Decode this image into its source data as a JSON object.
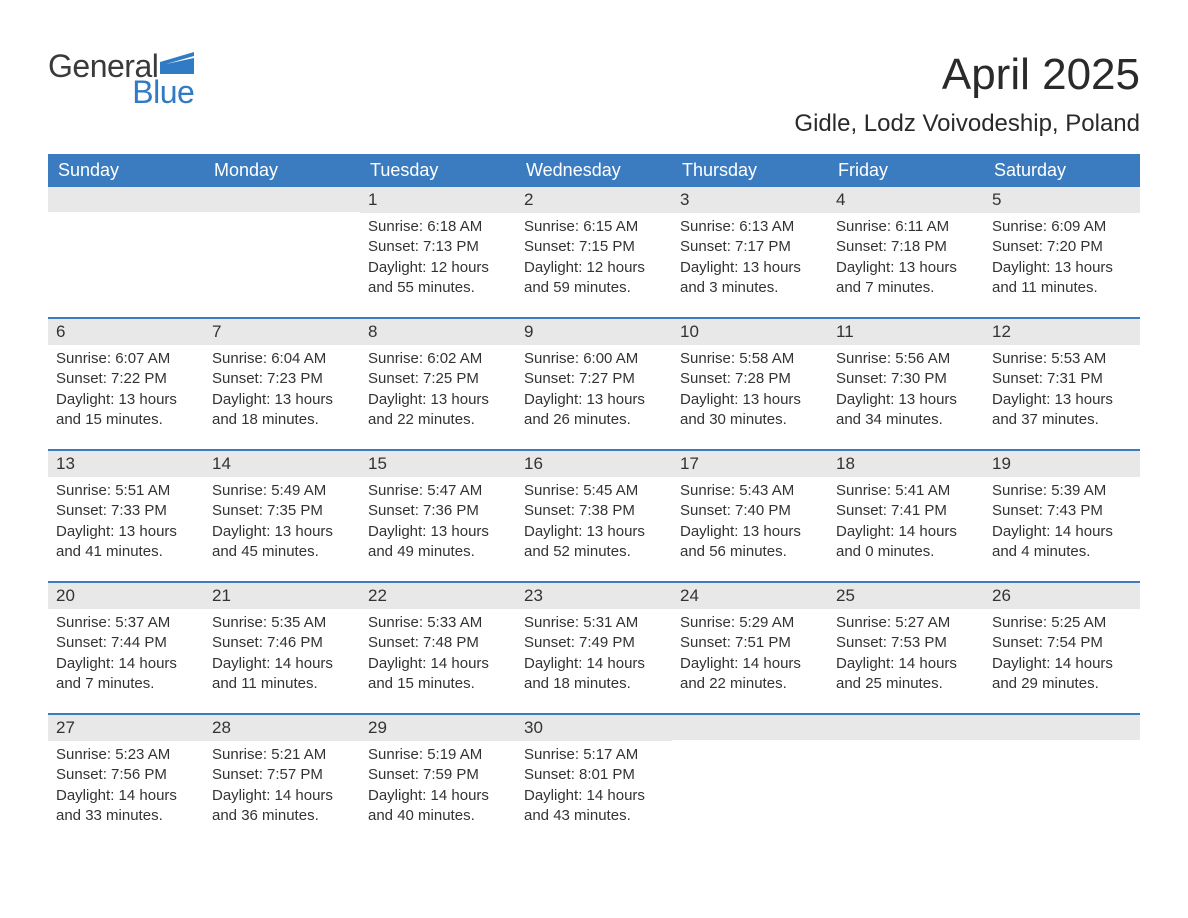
{
  "logo": {
    "word1": "General",
    "word2": "Blue",
    "text_color": "#3a3a3a",
    "accent_color": "#2f7bc4"
  },
  "title": "April 2025",
  "location": "Gidle, Lodz Voivodeship, Poland",
  "colors": {
    "header_bg": "#3a7cbf",
    "header_text": "#ffffff",
    "daynum_bg": "#e8e8e8",
    "week_border": "#3a7cbf",
    "body_text": "#333333",
    "page_bg": "#ffffff"
  },
  "fonts": {
    "title_size_pt": 33,
    "location_size_pt": 18,
    "header_size_pt": 14,
    "body_size_pt": 11,
    "family": "Arial"
  },
  "day_names": [
    "Sunday",
    "Monday",
    "Tuesday",
    "Wednesday",
    "Thursday",
    "Friday",
    "Saturday"
  ],
  "labels": {
    "sunrise": "Sunrise:",
    "sunset": "Sunset:",
    "daylight": "Daylight:"
  },
  "weeks": [
    [
      {
        "empty": true
      },
      {
        "empty": true
      },
      {
        "day": "1",
        "sunrise": "6:18 AM",
        "sunset": "7:13 PM",
        "daylight": "12 hours and 55 minutes."
      },
      {
        "day": "2",
        "sunrise": "6:15 AM",
        "sunset": "7:15 PM",
        "daylight": "12 hours and 59 minutes."
      },
      {
        "day": "3",
        "sunrise": "6:13 AM",
        "sunset": "7:17 PM",
        "daylight": "13 hours and 3 minutes."
      },
      {
        "day": "4",
        "sunrise": "6:11 AM",
        "sunset": "7:18 PM",
        "daylight": "13 hours and 7 minutes."
      },
      {
        "day": "5",
        "sunrise": "6:09 AM",
        "sunset": "7:20 PM",
        "daylight": "13 hours and 11 minutes."
      }
    ],
    [
      {
        "day": "6",
        "sunrise": "6:07 AM",
        "sunset": "7:22 PM",
        "daylight": "13 hours and 15 minutes."
      },
      {
        "day": "7",
        "sunrise": "6:04 AM",
        "sunset": "7:23 PM",
        "daylight": "13 hours and 18 minutes."
      },
      {
        "day": "8",
        "sunrise": "6:02 AM",
        "sunset": "7:25 PM",
        "daylight": "13 hours and 22 minutes."
      },
      {
        "day": "9",
        "sunrise": "6:00 AM",
        "sunset": "7:27 PM",
        "daylight": "13 hours and 26 minutes."
      },
      {
        "day": "10",
        "sunrise": "5:58 AM",
        "sunset": "7:28 PM",
        "daylight": "13 hours and 30 minutes."
      },
      {
        "day": "11",
        "sunrise": "5:56 AM",
        "sunset": "7:30 PM",
        "daylight": "13 hours and 34 minutes."
      },
      {
        "day": "12",
        "sunrise": "5:53 AM",
        "sunset": "7:31 PM",
        "daylight": "13 hours and 37 minutes."
      }
    ],
    [
      {
        "day": "13",
        "sunrise": "5:51 AM",
        "sunset": "7:33 PM",
        "daylight": "13 hours and 41 minutes."
      },
      {
        "day": "14",
        "sunrise": "5:49 AM",
        "sunset": "7:35 PM",
        "daylight": "13 hours and 45 minutes."
      },
      {
        "day": "15",
        "sunrise": "5:47 AM",
        "sunset": "7:36 PM",
        "daylight": "13 hours and 49 minutes."
      },
      {
        "day": "16",
        "sunrise": "5:45 AM",
        "sunset": "7:38 PM",
        "daylight": "13 hours and 52 minutes."
      },
      {
        "day": "17",
        "sunrise": "5:43 AM",
        "sunset": "7:40 PM",
        "daylight": "13 hours and 56 minutes."
      },
      {
        "day": "18",
        "sunrise": "5:41 AM",
        "sunset": "7:41 PM",
        "daylight": "14 hours and 0 minutes."
      },
      {
        "day": "19",
        "sunrise": "5:39 AM",
        "sunset": "7:43 PM",
        "daylight": "14 hours and 4 minutes."
      }
    ],
    [
      {
        "day": "20",
        "sunrise": "5:37 AM",
        "sunset": "7:44 PM",
        "daylight": "14 hours and 7 minutes."
      },
      {
        "day": "21",
        "sunrise": "5:35 AM",
        "sunset": "7:46 PM",
        "daylight": "14 hours and 11 minutes."
      },
      {
        "day": "22",
        "sunrise": "5:33 AM",
        "sunset": "7:48 PM",
        "daylight": "14 hours and 15 minutes."
      },
      {
        "day": "23",
        "sunrise": "5:31 AM",
        "sunset": "7:49 PM",
        "daylight": "14 hours and 18 minutes."
      },
      {
        "day": "24",
        "sunrise": "5:29 AM",
        "sunset": "7:51 PM",
        "daylight": "14 hours and 22 minutes."
      },
      {
        "day": "25",
        "sunrise": "5:27 AM",
        "sunset": "7:53 PM",
        "daylight": "14 hours and 25 minutes."
      },
      {
        "day": "26",
        "sunrise": "5:25 AM",
        "sunset": "7:54 PM",
        "daylight": "14 hours and 29 minutes."
      }
    ],
    [
      {
        "day": "27",
        "sunrise": "5:23 AM",
        "sunset": "7:56 PM",
        "daylight": "14 hours and 33 minutes."
      },
      {
        "day": "28",
        "sunrise": "5:21 AM",
        "sunset": "7:57 PM",
        "daylight": "14 hours and 36 minutes."
      },
      {
        "day": "29",
        "sunrise": "5:19 AM",
        "sunset": "7:59 PM",
        "daylight": "14 hours and 40 minutes."
      },
      {
        "day": "30",
        "sunrise": "5:17 AM",
        "sunset": "8:01 PM",
        "daylight": "14 hours and 43 minutes."
      },
      {
        "empty": true
      },
      {
        "empty": true
      },
      {
        "empty": true
      }
    ]
  ]
}
